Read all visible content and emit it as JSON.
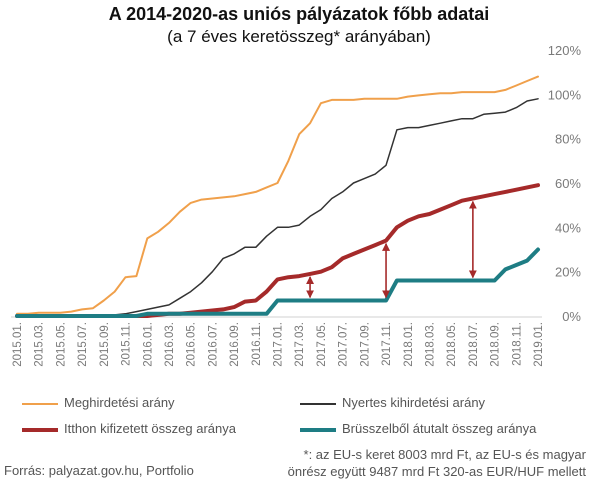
{
  "chart_data": {
    "type": "line",
    "title": "A 2014-2020-as uniós pályázatok főbb adatai",
    "subtitle": "(a 7 éves keretösszeg* arányában)",
    "xlabel": "",
    "ylabel": "",
    "ylim": [
      0,
      120
    ],
    "y_ticks": [
      "0%",
      "20%",
      "40%",
      "60%",
      "80%",
      "100%",
      "120%"
    ],
    "x_tick_labels": [
      "2015.01.",
      "2015.03.",
      "2015.05.",
      "2015.07.",
      "2015.09.",
      "2015.11.",
      "2016.01.",
      "2016.03.",
      "2016.05.",
      "2016.07.",
      "2016.09.",
      "2016.11.",
      "2017.01.",
      "2017.03.",
      "2017.05.",
      "2017.07.",
      "2017.09.",
      "2017.11.",
      "2018.01.",
      "2018.03.",
      "2018.05.",
      "2018.07.",
      "2018.09.",
      "2018.11.",
      "2019.01."
    ],
    "grid": false,
    "legend_position": "bottom",
    "x_start": "2015.01.",
    "months": 49,
    "series": [
      {
        "name": "Meghirdetési arány",
        "color": "#f0a04b",
        "width": 2,
        "values": [
          1,
          1,
          1.5,
          1.5,
          1.5,
          2,
          3,
          3.5,
          7,
          11,
          17.5,
          18,
          35,
          38,
          42,
          47,
          51,
          52.5,
          53,
          53.5,
          54,
          55,
          56,
          58,
          60,
          70,
          82,
          87,
          96,
          97.5,
          97.5,
          97.5,
          98,
          98,
          98,
          98,
          99,
          99.5,
          100,
          100.5,
          100.5,
          101,
          101,
          101,
          101,
          102,
          104,
          106,
          108
        ]
      },
      {
        "name": "Nyertes kihirdetési arány",
        "color": "#333333",
        "width": 1.5,
        "values": [
          0,
          0,
          0,
          0,
          0,
          0,
          0,
          0,
          0,
          0.5,
          1,
          2,
          3,
          4,
          5,
          8,
          11,
          15,
          20,
          26,
          28,
          31,
          31,
          36,
          40,
          40,
          41,
          45,
          48,
          53,
          56,
          60,
          62,
          64,
          68,
          84,
          85,
          85,
          86,
          87,
          88,
          89,
          89,
          91,
          91.5,
          92,
          94,
          97,
          98
        ]
      },
      {
        "name": "Itthon kifizetett összeg aránya",
        "color": "#a52a2a",
        "width": 4,
        "values": [
          0,
          0,
          0,
          0,
          0,
          0,
          0,
          0,
          0,
          0,
          0,
          0,
          0,
          0.5,
          1,
          1,
          1.5,
          2,
          2.5,
          3,
          4,
          6.5,
          7,
          11,
          16.5,
          17.5,
          18,
          19,
          20,
          22,
          26,
          28,
          30,
          32,
          34,
          40,
          43,
          45,
          46,
          48,
          50,
          52,
          53,
          54,
          55,
          56,
          57,
          58,
          59
        ]
      },
      {
        "name": "Brüsszelből átutalt összeg aránya",
        "color": "#1e7d84",
        "width": 4,
        "values": [
          0,
          0,
          0,
          0,
          0,
          0,
          0,
          0,
          0,
          0,
          0,
          0,
          1,
          1,
          1,
          1,
          1,
          1,
          1,
          1,
          1,
          1,
          1,
          1,
          7,
          7,
          7,
          7,
          7,
          7,
          7,
          7,
          7,
          7,
          7,
          16,
          16,
          16,
          16,
          16,
          16,
          16,
          16,
          16,
          16,
          21,
          23,
          25,
          30
        ]
      }
    ],
    "arrows_at_months": [
      27,
      34,
      42
    ]
  },
  "legend": {
    "item1": "Meghirdetési arány",
    "item2": "Nyertes kihirdetési arány",
    "item3": "Itthon kifizetett összeg aránya",
    "item4": "Brüsszelből átutalt összeg aránya",
    "color1": "#f0a04b",
    "color2": "#333333",
    "color3": "#a52a2a",
    "color4": "#1e7d84"
  },
  "note": {
    "line1": "*: az EU-s keret 8003 mrd Ft, az EU-s és magyar",
    "line2": "önrész együtt 9487 mrd Ft 320-as EUR/HUF mellett"
  },
  "source": "Forrás: palyazat.gov.hu, Portfolio",
  "arrow_color": "#a52a2a"
}
